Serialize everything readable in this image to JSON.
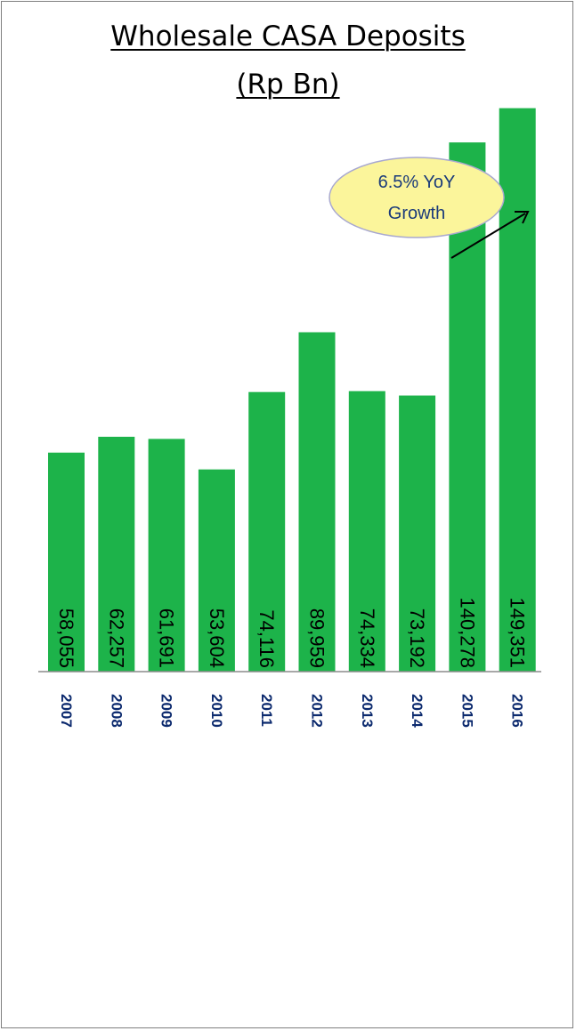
{
  "chart_data": {
    "type": "bar",
    "title": "Wholesale CASA Deposits",
    "subtitle": "(Rp Bn)",
    "categories": [
      "2007",
      "2008",
      "2009",
      "2010",
      "2011",
      "2012",
      "2013",
      "2014",
      "2015",
      "2016"
    ],
    "series": [
      {
        "values": [
          58055,
          62257,
          61691,
          53604,
          74116,
          89959,
          74334,
          73192,
          140278,
          149351
        ]
      }
    ],
    "data_labels": [
      "58,055",
      "62,257",
      "61,691",
      "53,604",
      "74,116",
      "89,959",
      "74,334",
      "73,192",
      "140,278",
      "149,351"
    ],
    "ylim": [
      0,
      170000
    ],
    "grid": false,
    "bar_color": "#1db34a",
    "category_label_color": "#0c2a6e",
    "annotation": {
      "line1": "6.5% YoY",
      "line2": "Growth",
      "fill": "#fbf59b",
      "stroke": "#a8a8d0",
      "text_color": "#1a3a7a"
    }
  }
}
